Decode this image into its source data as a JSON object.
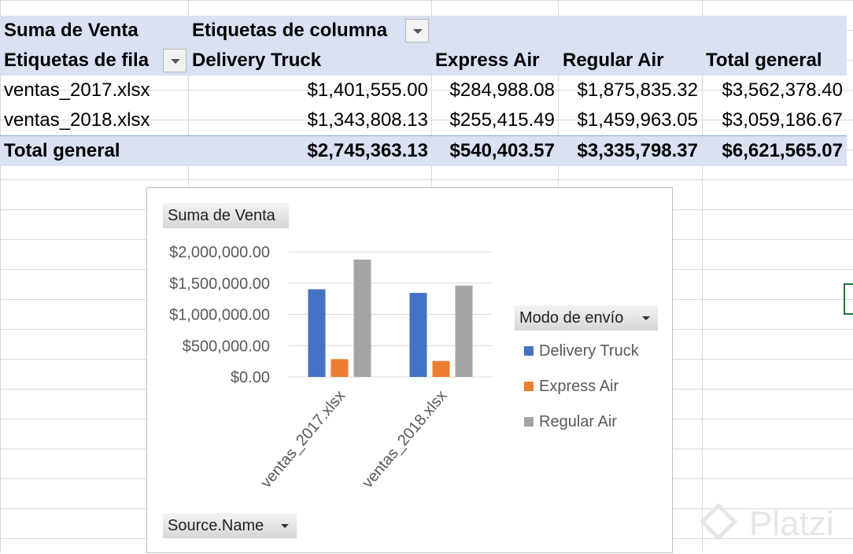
{
  "pivot": {
    "header_row1": {
      "value_label": "Suma de Venta",
      "column_labels": "Etiquetas de columna"
    },
    "header_row2": {
      "row_labels": "Etiquetas de fila",
      "columns": [
        "Delivery Truck",
        "Express Air",
        "Regular Air",
        "Total general"
      ]
    },
    "rows": [
      {
        "label": "ventas_2017.xlsx",
        "values": [
          "$1,401,555.00",
          "$284,988.08",
          "$1,875,835.32",
          "$3,562,378.40"
        ]
      },
      {
        "label": "ventas_2018.xlsx",
        "values": [
          "$1,343,808.13",
          "$255,415.49",
          "$1,459,963.05",
          "$3,059,186.67"
        ]
      }
    ],
    "total": {
      "label": "Total general",
      "values": [
        "$2,745,363.13",
        "$540,403.57",
        "$3,335,798.37",
        "$6,621,565.07"
      ]
    }
  },
  "chart": {
    "value_field_button": "Suma de Venta",
    "legend_field_button": "Modo de envío",
    "axis_field_button": "Source.Name"
  },
  "chart_data": {
    "type": "bar",
    "categories": [
      "ventas_2017.xlsx",
      "ventas_2018.xlsx"
    ],
    "series": [
      {
        "name": "Delivery Truck",
        "values": [
          1401555.0,
          1343808.13
        ],
        "color": "#4472c4"
      },
      {
        "name": "Express Air",
        "values": [
          284988.08,
          255415.49
        ],
        "color": "#ed7d31"
      },
      {
        "name": "Regular Air",
        "values": [
          1875835.32,
          1459963.05
        ],
        "color": "#a5a5a5"
      }
    ],
    "yticks": [
      "$0.00",
      "$500,000.00",
      "$1,000,000.00",
      "$1,500,000.00",
      "$2,000,000.00"
    ],
    "ylim": [
      0,
      2000000
    ],
    "gridlines": true,
    "legend_position": "right"
  },
  "watermark": {
    "text": "Platzi"
  }
}
